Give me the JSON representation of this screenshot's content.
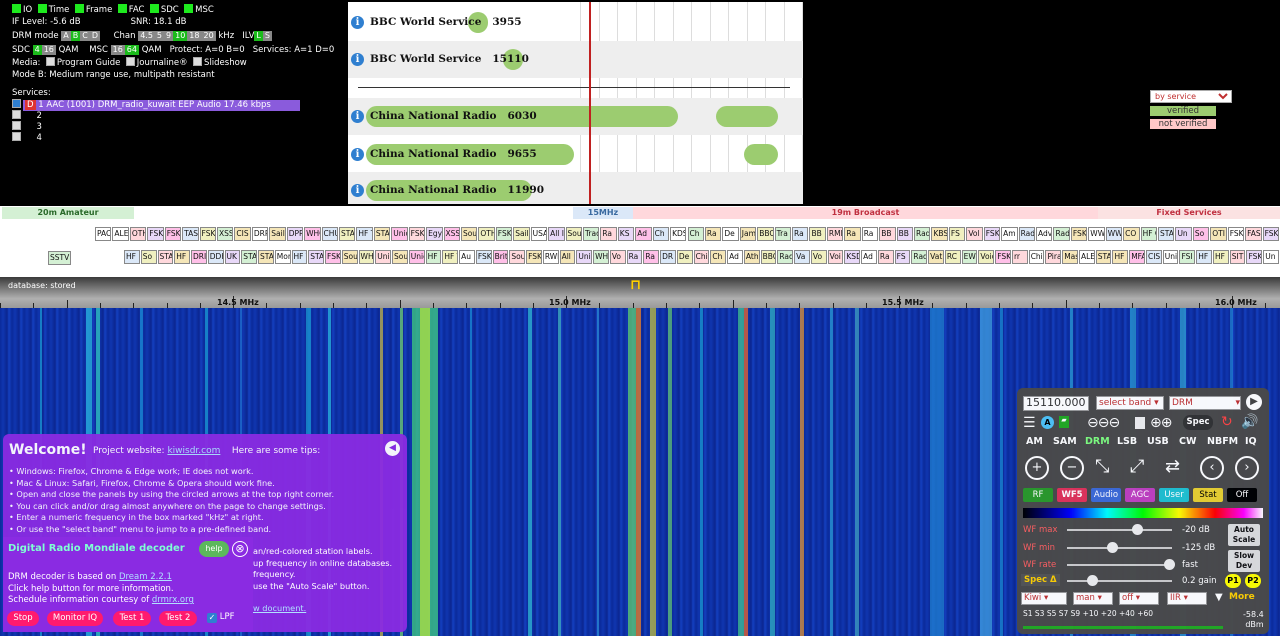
{
  "drm_status": {
    "leds": [
      "IO",
      "Time",
      "Frame",
      "FAC",
      "SDC",
      "MSC"
    ],
    "if_level": "IF Level: -5.6 dB",
    "snr": "SNR: 18.1 dB",
    "drm_mode_label": "DRM mode",
    "drm_modes": [
      "A",
      "B",
      "C",
      "D"
    ],
    "chan_label": "Chan",
    "chans": [
      "4.5",
      "5",
      "9",
      "10",
      "18",
      "20"
    ],
    "chan_unit": "kHz",
    "ilv_label": "ILV",
    "ilv_values": [
      "L",
      "S"
    ],
    "sdc_label": "SDC",
    "sdc_values": [
      "4",
      "16"
    ],
    "qam": "QAM",
    "msc_label": "MSC",
    "msc_values": [
      "16",
      "64"
    ],
    "protect": "Protect: A=0 B=0",
    "services_count": "Services: A=1 D=0",
    "media_label": "Media:",
    "media": [
      "Program Guide",
      "Journaline®",
      "Slideshow"
    ],
    "mode_desc": "Mode B: Medium range use, multipath resistant",
    "services_label": "Services:",
    "services": [
      {
        "num": "1",
        "text": "AAC (1001) DRM_radio_kuwait EEP Audio 17.46 kbps",
        "selected": true
      },
      {
        "num": "2",
        "text": ""
      },
      {
        "num": "3",
        "text": ""
      },
      {
        "num": "4",
        "text": ""
      }
    ]
  },
  "schedule": {
    "rows": [
      {
        "station": "BBC World Service",
        "freq": "3955"
      },
      {
        "station": "BBC World Service",
        "freq": "15110"
      },
      {
        "station": "China National Radio",
        "freq": "6030"
      },
      {
        "station": "China National Radio",
        "freq": "9655"
      },
      {
        "station": "China National Radio",
        "freq": "11990"
      }
    ],
    "legend_select": "by service",
    "legend_verified": "verified",
    "legend_not_verified": "not verified"
  },
  "bands": {
    "b1": "20m Amateur",
    "b2": "15MHz",
    "b3": "19m Broadcast",
    "b4": "Fixed Services"
  },
  "stations": {
    "row1": [
      "PACSEA",
      "ALE",
      "OTH",
      "FSK",
      "FSK",
      "TAS",
      "FSK",
      "XSS",
      "CIS",
      "DRP",
      "Sailr",
      "DPR",
      "WHC",
      "CHU",
      "STA",
      "HF Tr",
      "STA",
      "Unid",
      "FSK",
      "Egy",
      "XSS",
      "Sour",
      "OTH",
      "FSK",
      "Sailr",
      "USA",
      "All Ir",
      "Soun",
      "Trad",
      "Ra",
      "KS",
      "Ad",
      "Ch",
      "KDS",
      "Ch",
      "Ra",
      "De",
      "Jamm",
      "BBC",
      "Tra",
      "Ra",
      "BB",
      "RMI",
      "Ra",
      "Ra",
      "BB",
      "BB",
      "Rad",
      "KBS",
      "FS",
      "Vol",
      "FSK",
      "Am",
      "Rad",
      "Adve",
      "Rad",
      "FSK",
      "WWG",
      "WWCR",
      "CO",
      "HF C",
      "STA",
      "Un",
      "So",
      "OTI",
      "FSK",
      "FAS",
      "FSK"
    ],
    "row2": [
      "HF",
      "So",
      "STA",
      "HF",
      "DRI",
      "DDH",
      "UK",
      "STA",
      "STA",
      "Mor",
      "HF T",
      "STA",
      "FSK",
      "Soun",
      "WH2",
      "Unid",
      "Sou",
      "Unid",
      "HF",
      "HF T",
      "Au",
      "FSK",
      "Britt",
      "Sour",
      "FSK",
      "RWM",
      "All I",
      "Uni",
      "WH2X",
      "Vo",
      "Ra",
      "Ra",
      "DR",
      "De",
      "Chi",
      "Ch",
      "Ad",
      "Athi",
      "BBC",
      "Rad",
      "Va",
      "Vo",
      "Voi",
      "KSD",
      "Ad",
      "Ra",
      "FS",
      "Rad",
      "Vat",
      "RC",
      "EW",
      "Voic",
      "FSK",
      "rr",
      "Chin",
      "Pira",
      "Mas",
      "ALE",
      "STANA",
      "HF",
      "MFA",
      "CIS",
      "Unic",
      "FSI",
      "HF",
      "HF",
      "SIT",
      "FSK",
      "Un"
    ],
    "sstv": "SSTV"
  },
  "scale": {
    "database": "database: stored",
    "labels": [
      "14.5 MHz",
      "15.0 MHz",
      "15.5 MHz",
      "16.0 MHz"
    ]
  },
  "welcome": {
    "title": "Welcome!",
    "project_prefix": "Project website:",
    "project_link": "kiwisdr.com",
    "tips_intro": "Here are some tips:",
    "tips": [
      "• Windows: Firefox, Chrome & Edge work; IE does not work.",
      "• Mac & Linux: Safari, Firefox, Chrome & Opera should work fine.",
      "• Open and close the panels by using the circled arrows at the top right corner.",
      "• You can click and/or drag almost anywhere on the page to change settings.",
      "• Enter a numeric frequency in the box marked \"kHz\" at right.",
      "• Or use the \"select band\" menu to jump to a pre-defined band."
    ],
    "tail_lines": [
      "an/red-colored station labels.",
      "up frequency in online databases.",
      "frequency.",
      "use the \"Auto Scale\" button."
    ],
    "tail_link": "w document."
  },
  "drm_decoder": {
    "title": "Digital Radio Mondiale decoder",
    "help": "help",
    "close": "⊗",
    "based_prefix": "DRM decoder is based on",
    "based_link": "Dream 2.2.1",
    "help_line": "Click help button for more information.",
    "sched_prefix": "Schedule information courtesy of",
    "sched_link": "drmrx.org",
    "buttons": [
      "Stop",
      "Monitor IQ",
      "Test 1",
      "Test 2"
    ],
    "lpf": "LPF"
  },
  "control": {
    "freq": "15110.000",
    "band_select": "select band",
    "mode_select": "DRM",
    "spec_btn": "Spec",
    "modes": [
      "AM",
      "SAM",
      "DRM",
      "LSB",
      "USB",
      "CW",
      "NBFM",
      "IQ"
    ],
    "tabs": [
      "RF",
      "WF5",
      "Audio",
      "AGC",
      "User",
      "Stat",
      "Off"
    ],
    "wf_max_label": "WF max",
    "wf_max_val": "-20 dB",
    "wf_min_label": "WF min",
    "wf_min_val": "-125 dB",
    "wf_rate_label": "WF rate",
    "wf_rate_val": "fast",
    "spec_label": "Spec Δ",
    "spec_val": "0.2 gain",
    "auto_scale": "Auto Scale",
    "slow_dev": "Slow Dev",
    "p1": "P1",
    "p2": "P2",
    "bottom_selects": [
      "Kiwi",
      "man",
      "off",
      "IIR"
    ],
    "more": "More",
    "smeter": "S1 S3 S5 S7 S9 +10 +20 +40 +60",
    "dbm_val": "-58.4",
    "dbm_unit": "dBm"
  }
}
